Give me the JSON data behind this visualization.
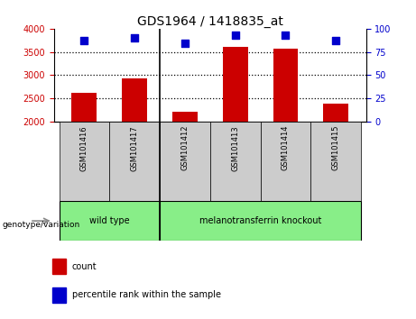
{
  "title": "GDS1964 / 1418835_at",
  "categories": [
    "GSM101416",
    "GSM101417",
    "GSM101412",
    "GSM101413",
    "GSM101414",
    "GSM101415"
  ],
  "counts": [
    2620,
    2920,
    2200,
    3610,
    3570,
    2390
  ],
  "percentile_ranks": [
    87,
    90,
    84,
    93,
    93,
    87
  ],
  "ylim_left": [
    2000,
    4000
  ],
  "ylim_right": [
    0,
    100
  ],
  "yticks_left": [
    2000,
    2500,
    3000,
    3500,
    4000
  ],
  "yticks_right": [
    0,
    25,
    50,
    75,
    100
  ],
  "bar_color": "#cc0000",
  "dot_color": "#0000cc",
  "group1_label": "wild type",
  "group2_label": "melanotransferrin knockout",
  "group1_indices": [
    0,
    1
  ],
  "group2_indices": [
    2,
    3,
    4,
    5
  ],
  "group_label_prefix": "genotype/variation",
  "legend_count_label": "count",
  "legend_percentile_label": "percentile rank within the sample",
  "group_bg_color": "#88ee88",
  "tick_label_bg": "#cccccc",
  "separator_color": "#000000",
  "left_tick_color": "#cc0000",
  "right_tick_color": "#0000cc",
  "bar_width": 0.5,
  "dot_size": 30,
  "grid_linestyle": "dotted",
  "grid_linewidth": 0.9
}
